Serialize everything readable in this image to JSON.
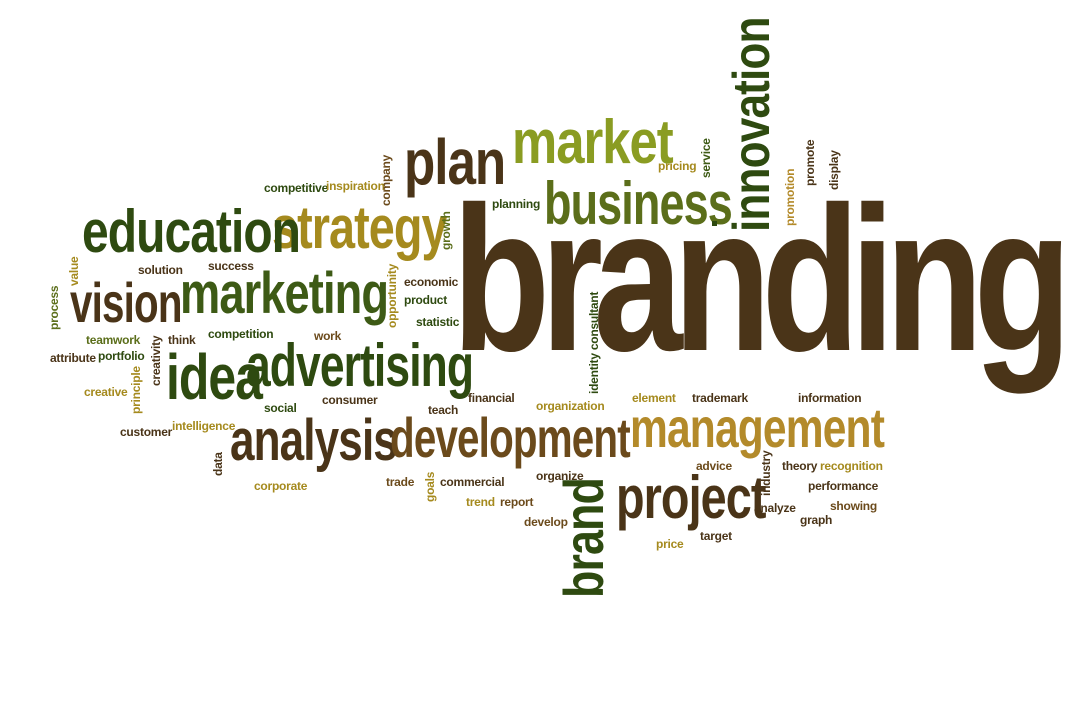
{
  "words": {
    "branding": "branding",
    "innovation": "innovation",
    "market": "market",
    "plan": "plan",
    "business": "business",
    "strategy": "strategy",
    "education": "education",
    "marketing": "marketing",
    "vision": "vision",
    "advertising": "advertising",
    "idea": "idea",
    "analysis": "analysis",
    "development": "development",
    "management": "management",
    "project": "project",
    "brand": "brand",
    "growth": "growth",
    "pricing": "pricing",
    "service": "service",
    "promote": "promote",
    "display": "display",
    "promotion": "promotion",
    "competitive": "competitive",
    "inspiration": "inspiration",
    "company": "company",
    "planning": "planning",
    "value": "value",
    "solution": "solution",
    "success": "success",
    "process": "process",
    "economic": "economic",
    "opportunity": "opportunity",
    "product": "product",
    "statistic": "statistic",
    "teamwork": "teamwork",
    "think": "think",
    "competition": "competition",
    "work": "work",
    "attribute": "attribute",
    "portfolio": "portfolio",
    "creativity": "creativity",
    "creative": "creative",
    "principle": "principle",
    "customer": "customer",
    "intelligence": "intelligence",
    "social": "social",
    "consumer": "consumer",
    "teach": "teach",
    "financial": "financial",
    "organization": "organization",
    "identity_consultant": "identity consultant",
    "element": "element",
    "trademark": "trademark",
    "information": "information",
    "data": "data",
    "corporate": "corporate",
    "trade": "trade",
    "goals": "goals",
    "commercial": "commercial",
    "trend": "trend",
    "organize": "organize",
    "report": "report",
    "develop": "develop",
    "advice": "advice",
    "industry": "industry",
    "theory": "theory",
    "recognition": "recognition",
    "performance": "performance",
    "analyze": "analyze",
    "graph": "graph",
    "showing": "showing",
    "target": "target",
    "price": "price"
  },
  "colors": {
    "dark_brown": "#4a3418",
    "dark_green": "#3d5a15",
    "olive": "#8a9c22",
    "mustard": "#a58a1e",
    "medium_brown": "#6b4a1b",
    "deep_green": "#2e4a10",
    "mid_green": "#5b6e1a",
    "gold": "#b38a2a",
    "background": "#ffffff"
  }
}
